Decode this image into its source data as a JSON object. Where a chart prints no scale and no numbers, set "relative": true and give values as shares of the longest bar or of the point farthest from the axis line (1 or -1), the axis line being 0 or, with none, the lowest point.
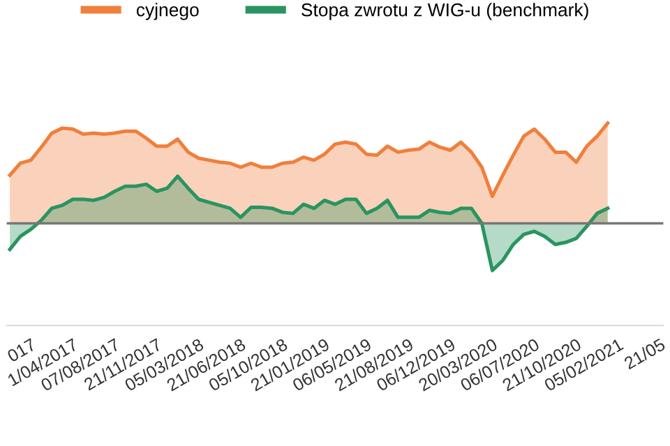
{
  "chart_data": {
    "type": "area",
    "relative": true,
    "legend": "top",
    "tick_labels": "x",
    "categories": [
      null,
      null,
      "017",
      null,
      null,
      null,
      "1/04/2017",
      null,
      null,
      null,
      "07/08/2017",
      null,
      null,
      null,
      "21/11/2017",
      null,
      null,
      null,
      "05/03/2018",
      null,
      null,
      null,
      "21/06/2018",
      null,
      null,
      null,
      "05/10/2018",
      null,
      null,
      null,
      "21/01/2019",
      null,
      null,
      null,
      "06/05/2019",
      null,
      null,
      null,
      "21/08/2019",
      null,
      null,
      null,
      "06/12/2019",
      null,
      null,
      null,
      "20/03/2020",
      null,
      null,
      null,
      "06/07/2020",
      null,
      null,
      null,
      "21/10/2020",
      null,
      null,
      null,
      "05/02/2021",
      null,
      null,
      null,
      "21/05"
    ],
    "series": [
      {
        "name": "cyjnego",
        "color": "#f07f3c",
        "values": [
          0.48,
          0.6,
          0.63,
          0.76,
          0.9,
          0.95,
          0.94,
          0.89,
          0.9,
          0.89,
          0.9,
          0.92,
          0.92,
          0.85,
          0.77,
          0.77,
          0.84,
          0.71,
          0.65,
          0.63,
          0.61,
          0.6,
          0.56,
          0.6,
          0.56,
          0.56,
          0.6,
          0.61,
          0.66,
          0.63,
          0.69,
          0.79,
          0.81,
          0.79,
          0.69,
          0.68,
          0.77,
          0.71,
          0.73,
          0.74,
          0.81,
          0.76,
          0.73,
          0.81,
          0.71,
          0.56,
          0.27,
          0.48,
          0.68,
          0.87,
          0.94,
          0.84,
          0.71,
          0.71,
          0.61,
          0.77,
          0.87,
          1.0,
          null,
          null,
          null,
          null,
          null
        ]
      },
      {
        "name": "Stopa zwrotu z WIG-u (benchmark)",
        "color": "#2a9460",
        "values": [
          -0.26,
          -0.13,
          -0.06,
          0.03,
          0.15,
          0.18,
          0.24,
          0.24,
          0.23,
          0.26,
          0.32,
          0.37,
          0.37,
          0.39,
          0.32,
          0.35,
          0.47,
          0.35,
          0.24,
          0.21,
          0.18,
          0.15,
          0.06,
          0.16,
          0.16,
          0.15,
          0.11,
          0.1,
          0.19,
          0.15,
          0.23,
          0.19,
          0.24,
          0.24,
          0.1,
          0.15,
          0.23,
          0.06,
          0.06,
          0.06,
          0.13,
          0.11,
          0.1,
          0.15,
          0.15,
          0.0,
          -0.47,
          -0.37,
          -0.21,
          -0.11,
          -0.08,
          -0.13,
          -0.21,
          -0.19,
          -0.15,
          -0.03,
          0.1,
          0.15,
          null,
          null,
          null,
          null,
          null
        ]
      }
    ]
  }
}
